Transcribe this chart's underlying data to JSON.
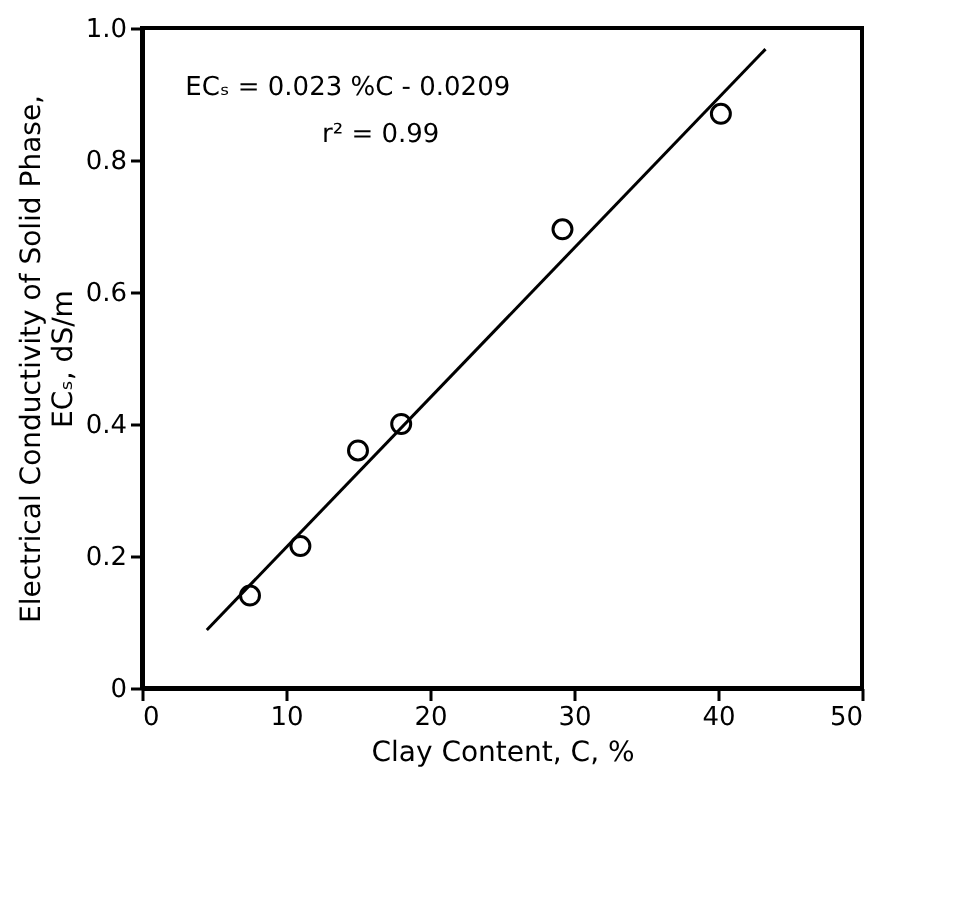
{
  "chart_data": {
    "type": "scatter",
    "xlabel": "Clay Content, C, %",
    "ylabel": "Electrical Conductivity of Solid Phase,\nECₛ, dS/m",
    "series": [
      {
        "color": "#000000",
        "marker": "circle",
        "x": [
          7.5,
          11,
          15,
          18,
          29.2,
          40.2
        ],
        "values": [
          0.14,
          0.215,
          0.36,
          0.4,
          0.695,
          0.87
        ]
      },
      {
        "type": "line",
        "color": "#000000",
        "marker": "none",
        "line_style": "solid",
        "x": [
          4.5,
          43.3
        ],
        "values": [
          0.088,
          0.968
        ]
      }
    ],
    "annotations": [
      "ECₛ = 0.023 %C - 0.0209",
      "r² = 0.99"
    ],
    "xlim": [
      0,
      50
    ],
    "xticks": [
      0,
      10,
      20,
      30,
      40,
      50
    ],
    "ylim": [
      0,
      1.0
    ],
    "yticks": [
      {
        "value": 0,
        "label": "0"
      },
      {
        "value": 0.2,
        "label": "0.2"
      },
      {
        "value": 0.4,
        "label": "0.4"
      },
      {
        "value": 0.6,
        "label": "0.6"
      },
      {
        "value": 0.8,
        "label": "0.8"
      },
      {
        "value": 1.0,
        "label": "1.0"
      }
    ]
  }
}
